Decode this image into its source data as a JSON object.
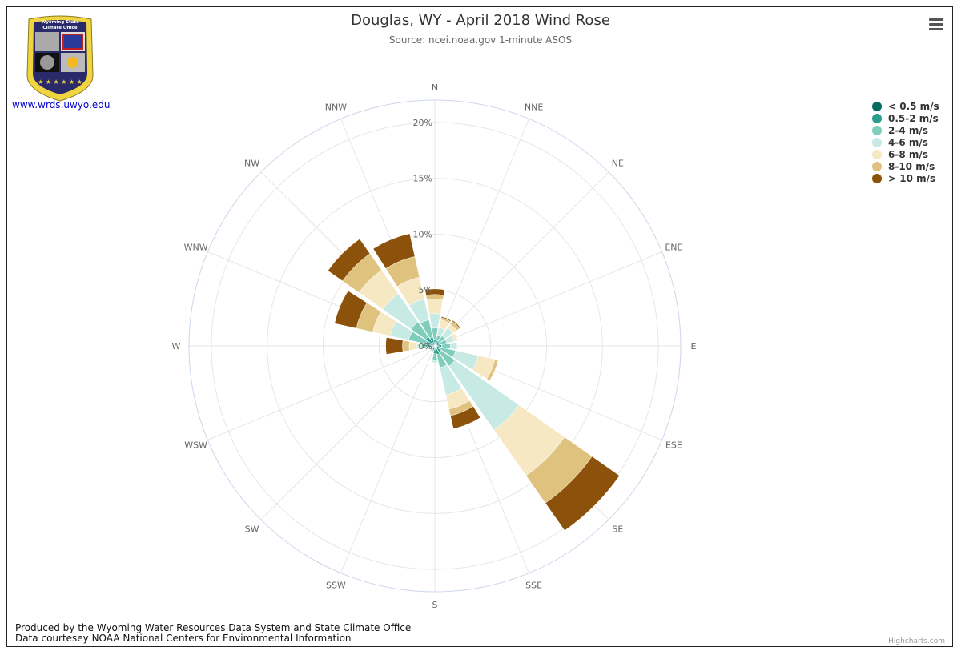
{
  "header": {
    "title": "Douglas, WY - April 2018 Wind Rose",
    "subtitle": "Source: ncei.noaa.gov 1-minute ASOS"
  },
  "logo": {
    "org_line1": "Wyoming State",
    "org_line2": "Climate Office",
    "link_text": "www.wrds.uwyo.edu"
  },
  "menu": {
    "icon": "hamburger-menu-icon"
  },
  "footer": {
    "line1": "Produced by the Wyoming Water Resources Data System and State Climate Office",
    "line2": "Data courtesey NOAA National Centers for Environmental Information",
    "credit": "Highcharts.com"
  },
  "chart_data": {
    "type": "windrose",
    "title": "Douglas, WY - April 2018 Wind Rose",
    "subtitle": "Source: ncei.noaa.gov 1-minute ASOS",
    "directions": [
      "N",
      "NNE",
      "NE",
      "ENE",
      "E",
      "ESE",
      "SE",
      "SSE",
      "S",
      "SSW",
      "SW",
      "WSW",
      "W",
      "WNW",
      "NW",
      "NNW"
    ],
    "radial_ticks": [
      "0%",
      "5%",
      "10%",
      "15%",
      "20%"
    ],
    "radial_max": 22,
    "stacking": "cumulative",
    "legend_position": "top-right",
    "series": [
      {
        "name": "< 0.5 m/s",
        "color": "#006d5f",
        "values": [
          0.3,
          0.2,
          0.2,
          0.2,
          0.2,
          0.2,
          0.3,
          0.3,
          0.3,
          0.2,
          0.2,
          0.2,
          0.3,
          0.3,
          0.4,
          0.3
        ]
      },
      {
        "name": "0.5-2 m/s",
        "color": "#2a9d90",
        "values": [
          0.3,
          0.3,
          0.3,
          0.3,
          0.4,
          0.3,
          0.4,
          0.5,
          0.4,
          0.2,
          0.2,
          0.2,
          0.3,
          0.5,
          0.6,
          0.5
        ]
      },
      {
        "name": "2-4 m/s",
        "color": "#7fcdbb",
        "values": [
          1.0,
          0.5,
          0.6,
          0.6,
          0.8,
          1.4,
          1.5,
          1.2,
          0.6,
          0.1,
          0.1,
          0.1,
          0.6,
          1.6,
          1.6,
          1.6
        ]
      },
      {
        "name": "4-6 m/s",
        "color": "#c7eae5",
        "values": [
          1.3,
          0.7,
          0.9,
          0.7,
          0.6,
          2.1,
          7.0,
          2.5,
          0.2,
          0,
          0,
          0,
          0.4,
          1.7,
          3.1,
          1.9
        ]
      },
      {
        "name": "6-8 m/s",
        "color": "#f6e8c3",
        "values": [
          1.3,
          0.7,
          0.4,
          0.3,
          0,
          1.5,
          5.0,
          1.3,
          0,
          0,
          0,
          0,
          0.7,
          1.6,
          2.6,
          2.0
        ]
      },
      {
        "name": "8-10 m/s",
        "color": "#dfc27d",
        "values": [
          0.4,
          0.2,
          0.3,
          0,
          0,
          0.3,
          3.0,
          0.6,
          0,
          0,
          0,
          0,
          0.6,
          1.5,
          1.8,
          1.9
        ]
      },
      {
        "name": "> 10 m/s",
        "color": "#8c510a",
        "values": [
          0.5,
          0.1,
          0.1,
          0,
          0,
          0,
          3.0,
          1.2,
          0,
          0,
          0,
          0,
          1.5,
          2.0,
          1.6,
          2.1
        ]
      }
    ]
  }
}
